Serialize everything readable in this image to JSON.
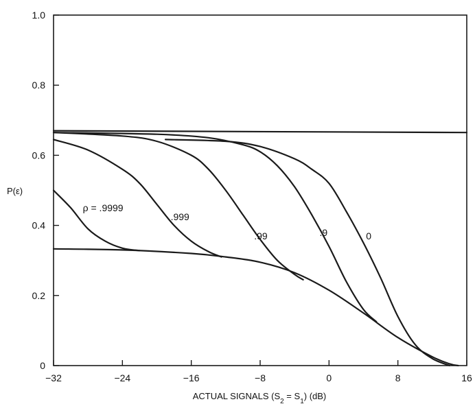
{
  "chart_data": {
    "type": "line",
    "title": "",
    "ylabel": "P(ε)",
    "xlabel_parts": [
      "ACTUAL SIGNALS  (S",
      "2",
      " = S",
      "1",
      ") (dB)"
    ],
    "xlim": [
      -32,
      16
    ],
    "ylim": [
      0,
      1.0
    ],
    "x_ticks": [
      -32,
      -24,
      -16,
      -8,
      0,
      8,
      16
    ],
    "x_tick_labels": [
      "−32",
      "−24",
      "−16",
      "−8",
      "0",
      "8",
      "16"
    ],
    "y_ticks": [
      0,
      0.2,
      0.4,
      0.6,
      0.8,
      1.0
    ],
    "y_tick_labels": [
      "0",
      "0.2",
      "0.4",
      "0.6",
      "0.8",
      "1.0"
    ],
    "grid": false,
    "series": [
      {
        "name": "ρ = .9999",
        "points": [
          [
            -32,
            0.5
          ],
          [
            -30,
            0.45
          ],
          [
            -28,
            0.39
          ],
          [
            -26,
            0.355
          ],
          [
            -24,
            0.335
          ],
          [
            -22,
            0.328
          ]
        ]
      },
      {
        "name": ".999",
        "points": [
          [
            -32,
            0.645
          ],
          [
            -28,
            0.615
          ],
          [
            -24,
            0.56
          ],
          [
            -22,
            0.52
          ],
          [
            -20,
            0.46
          ],
          [
            -18,
            0.4
          ],
          [
            -16,
            0.355
          ],
          [
            -14,
            0.325
          ],
          [
            -12.5,
            0.31
          ]
        ]
      },
      {
        "name": ".99",
        "points": [
          [
            -32,
            0.665
          ],
          [
            -24,
            0.655
          ],
          [
            -20,
            0.64
          ],
          [
            -16,
            0.6
          ],
          [
            -14,
            0.56
          ],
          [
            -12,
            0.5
          ],
          [
            -10,
            0.43
          ],
          [
            -8,
            0.36
          ],
          [
            -6,
            0.3
          ],
          [
            -4,
            0.26
          ],
          [
            -3,
            0.245
          ]
        ]
      },
      {
        "name": ".9",
        "points": [
          [
            -32,
            0.665
          ],
          [
            -20,
            0.66
          ],
          [
            -14,
            0.65
          ],
          [
            -10,
            0.63
          ],
          [
            -8,
            0.61
          ],
          [
            -6,
            0.57
          ],
          [
            -4,
            0.51
          ],
          [
            -2,
            0.43
          ],
          [
            0,
            0.34
          ],
          [
            2,
            0.24
          ],
          [
            4,
            0.16
          ],
          [
            5.5,
            0.125
          ]
        ]
      },
      {
        "name": "0",
        "points": [
          [
            -19,
            0.645
          ],
          [
            -12,
            0.64
          ],
          [
            -8,
            0.625
          ],
          [
            -4,
            0.59
          ],
          [
            -2,
            0.56
          ],
          [
            0,
            0.52
          ],
          [
            2,
            0.44
          ],
          [
            4,
            0.35
          ],
          [
            6,
            0.25
          ],
          [
            8,
            0.14
          ],
          [
            10,
            0.06
          ],
          [
            12,
            0.02
          ],
          [
            14,
            0.0
          ]
        ]
      },
      {
        "name": "",
        "points": [
          [
            -32,
            0.67
          ],
          [
            16,
            0.665
          ]
        ]
      },
      {
        "name": "",
        "points": [
          [
            -32,
            0.333
          ],
          [
            -24,
            0.33
          ],
          [
            -16,
            0.32
          ],
          [
            -12,
            0.31
          ],
          [
            -8,
            0.295
          ],
          [
            -4,
            0.265
          ],
          [
            0,
            0.215
          ],
          [
            4,
            0.15
          ],
          [
            8,
            0.08
          ],
          [
            12,
            0.025
          ],
          [
            14,
            0.005
          ],
          [
            15,
            0.0
          ]
        ]
      }
    ],
    "curve_labels": [
      {
        "text": "ρ = .9999",
        "x": -28.6,
        "y": 0.44
      },
      {
        "text": ".999",
        "x": -18.4,
        "y": 0.415
      },
      {
        "text": ".99",
        "x": -8.7,
        "y": 0.36
      },
      {
        "text": ".9",
        "x": -1.1,
        "y": 0.37
      },
      {
        "text": "0",
        "x": 4.3,
        "y": 0.36
      }
    ]
  }
}
